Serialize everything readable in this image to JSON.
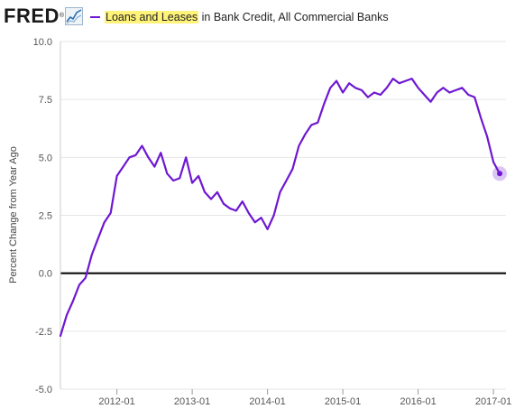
{
  "header": {
    "logo_text": "FRED",
    "logo_mark": "®",
    "graph_icon": "line-graph-icon"
  },
  "legend": {
    "highlighted": "Loans and Leases",
    "rest": " in Bank Credit, All Commercial Banks",
    "series_color": "#6e18d1",
    "highlight_color": "#fff37a"
  },
  "chart_data": {
    "type": "line",
    "title": "",
    "xlabel": "",
    "ylabel": "Percent Change from Year Ago",
    "ylim": [
      -5.0,
      10.0
    ],
    "xlim": [
      "2011-04",
      "2017-03"
    ],
    "yticks": [
      "-5.0",
      "-2.5",
      "0.0",
      "2.5",
      "5.0",
      "7.5",
      "10.0"
    ],
    "xticks": [
      "2012-01",
      "2013-01",
      "2014-01",
      "2015-01",
      "2016-01",
      "2017-01"
    ],
    "grid": "horizontal",
    "zero_line": true,
    "series": [
      {
        "name": "Loans and Leases in Bank Credit, All Commercial Banks",
        "color": "#6e18d1",
        "x": [
          "2011-04",
          "2011-05",
          "2011-06",
          "2011-07",
          "2011-08",
          "2011-09",
          "2011-10",
          "2011-11",
          "2011-12",
          "2012-01",
          "2012-02",
          "2012-03",
          "2012-04",
          "2012-05",
          "2012-06",
          "2012-07",
          "2012-08",
          "2012-09",
          "2012-10",
          "2012-11",
          "2012-12",
          "2013-01",
          "2013-02",
          "2013-03",
          "2013-04",
          "2013-05",
          "2013-06",
          "2013-07",
          "2013-08",
          "2013-09",
          "2013-10",
          "2013-11",
          "2013-12",
          "2014-01",
          "2014-02",
          "2014-03",
          "2014-04",
          "2014-05",
          "2014-06",
          "2014-07",
          "2014-08",
          "2014-09",
          "2014-10",
          "2014-11",
          "2014-12",
          "2015-01",
          "2015-02",
          "2015-03",
          "2015-04",
          "2015-05",
          "2015-06",
          "2015-07",
          "2015-08",
          "2015-09",
          "2015-10",
          "2015-11",
          "2015-12",
          "2016-01",
          "2016-02",
          "2016-03",
          "2016-04",
          "2016-05",
          "2016-06",
          "2016-07",
          "2016-08",
          "2016-09",
          "2016-10",
          "2016-11",
          "2016-12",
          "2017-01",
          "2017-02"
        ],
        "values": [
          -2.7,
          -1.8,
          -1.2,
          -0.5,
          -0.2,
          0.8,
          1.5,
          2.2,
          2.6,
          4.2,
          4.6,
          5.0,
          5.1,
          5.5,
          5.0,
          4.6,
          5.2,
          4.3,
          4.0,
          4.1,
          5.0,
          3.9,
          4.2,
          3.5,
          3.2,
          3.5,
          3.0,
          2.8,
          2.7,
          3.1,
          2.6,
          2.2,
          2.4,
          1.9,
          2.5,
          3.5,
          4.0,
          4.5,
          5.5,
          6.0,
          6.4,
          6.5,
          7.3,
          8.0,
          8.3,
          7.8,
          8.2,
          8.0,
          7.9,
          7.6,
          7.8,
          7.7,
          8.0,
          8.4,
          8.2,
          8.3,
          8.4,
          8.0,
          7.7,
          7.4,
          7.8,
          8.0,
          7.8,
          7.9,
          8.0,
          7.7,
          7.6,
          6.7,
          5.9,
          4.8,
          4.3
        ]
      }
    ]
  }
}
